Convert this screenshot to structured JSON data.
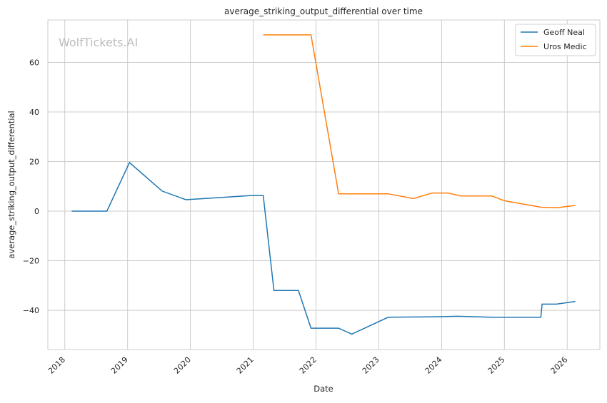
{
  "chart_data": {
    "type": "line",
    "title": "average_striking_output_differential over time",
    "xlabel": "Date",
    "ylabel": "average_striking_output_differential",
    "watermark": "WolfTickets.AI",
    "xlim": [
      2017.73,
      2026.52
    ],
    "ylim": [
      -55.8,
      77.1
    ],
    "x_ticks": [
      2018,
      2019,
      2020,
      2021,
      2022,
      2023,
      2024,
      2025,
      2026
    ],
    "y_ticks": [
      -40,
      -20,
      0,
      20,
      40,
      60
    ],
    "y_tick_labels": [
      "−40",
      "−20",
      "0",
      "20",
      "40",
      "60"
    ],
    "grid": true,
    "legend": "top-right",
    "series": [
      {
        "name": "Geoff Neal",
        "color": "#1f77b4",
        "x": [
          2018.11,
          2018.67,
          2019.03,
          2019.55,
          2019.93,
          2020.97,
          2021.16,
          2021.33,
          2021.72,
          2021.92,
          2022.36,
          2022.57,
          2023.15,
          2023.9,
          2024.24,
          2024.81,
          2025.58,
          2025.6,
          2025.83,
          2026.13
        ],
        "y": [
          0,
          0,
          19.6,
          8.1,
          4.6,
          6.3,
          6.3,
          -32,
          -32,
          -47.2,
          -47.2,
          -49.6,
          -42.8,
          -42.6,
          -42.4,
          -42.8,
          -42.8,
          -37.5,
          -37.5,
          -36.4
        ]
      },
      {
        "name": "Uros Medic",
        "color": "#ff7f0e",
        "x": [
          2021.16,
          2021.92,
          2022.36,
          2023.15,
          2023.55,
          2023.85,
          2024.11,
          2024.3,
          2024.8,
          2025.0,
          2025.58,
          2025.83,
          2026.13
        ],
        "y": [
          71.1,
          71.1,
          7.0,
          7.0,
          5.1,
          7.3,
          7.3,
          6.1,
          6.1,
          4.2,
          1.6,
          1.4,
          2.3
        ]
      }
    ]
  }
}
